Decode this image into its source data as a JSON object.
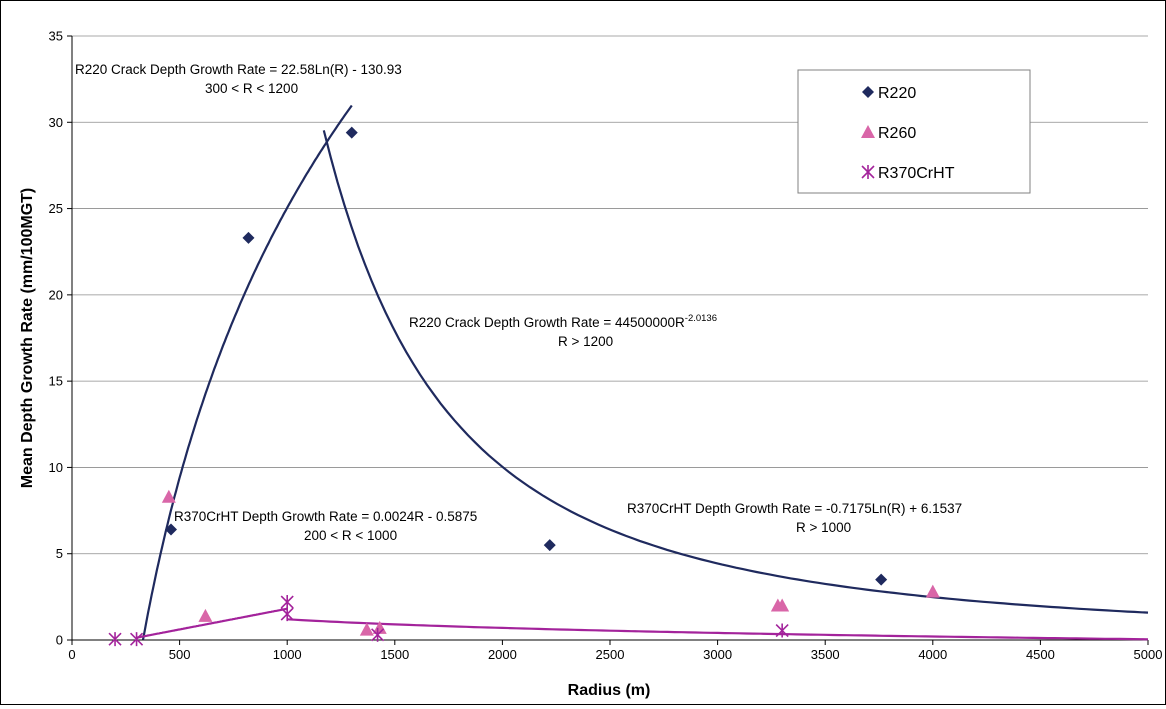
{
  "chart_data": {
    "type": "scatter",
    "xlabel": "Radius (m)",
    "ylabel": "Mean Depth Growth Rate (mm/100MGT)",
    "xlim": [
      0,
      5000
    ],
    "ylim": [
      0,
      35
    ],
    "x_ticks": [
      "0",
      "500",
      "1000",
      "1500",
      "2000",
      "2500",
      "3000",
      "3500",
      "4000",
      "4500",
      "5000"
    ],
    "y_ticks": [
      "0",
      "5",
      "10",
      "15",
      "20",
      "25",
      "30",
      "35"
    ],
    "grid": "horizontal",
    "legend_position": "top-right",
    "series": [
      {
        "name": "R220",
        "marker": "diamond",
        "color": "#1F2A5E",
        "points": [
          [
            460,
            6.4
          ],
          [
            820,
            23.3
          ],
          [
            1300,
            29.4
          ],
          [
            2220,
            5.5
          ],
          [
            3760,
            3.5
          ]
        ]
      },
      {
        "name": "R260",
        "marker": "triangle",
        "color": "#D966A8",
        "points": [
          [
            450,
            8.3
          ],
          [
            620,
            1.4
          ],
          [
            1370,
            0.6
          ],
          [
            1430,
            0.7
          ],
          [
            3280,
            2.0
          ],
          [
            3300,
            2.0
          ],
          [
            4000,
            2.8
          ]
        ]
      },
      {
        "name": "R370CrHT",
        "marker": "asterisk",
        "color": "#A3239B",
        "points": [
          [
            200,
            0.05
          ],
          [
            300,
            0.05
          ],
          [
            1000,
            2.2
          ],
          [
            1000,
            1.5
          ],
          [
            1420,
            0.3
          ],
          [
            3300,
            0.55
          ]
        ]
      }
    ],
    "trendlines": [
      {
        "series": "R220",
        "formula": "22.58*ln(R) - 130.93",
        "x_from": 330,
        "x_to": 1300,
        "color": "#1F2A5E"
      },
      {
        "series": "R220",
        "formula": "44500000*R^-2.0136",
        "x_from": 1170,
        "x_to": 5000,
        "color": "#1F2A5E"
      },
      {
        "series": "R370CrHT",
        "formula": "0.0024*R - 0.5875",
        "x_from": 300,
        "x_to": 1000,
        "color": "#A3239B"
      },
      {
        "series": "R370CrHT",
        "formula": "-0.7175*ln(R) + 6.1537",
        "x_from": 1000,
        "x_to": 5000,
        "color": "#A3239B"
      }
    ],
    "annotations": {
      "r220_log_eq": "R220 Crack Depth Growth Rate = 22.58Ln(R) - 130.93",
      "r220_log_range": "300 < R < 1200",
      "r220_pow_eq_main": "R220 Crack Depth Growth Rate = 44500000R",
      "r220_pow_eq_exp": "-2.0136",
      "r220_pow_range": "R > 1200",
      "r370_lin_eq": "R370CrHT Depth Growth Rate = 0.0024R - 0.5875",
      "r370_lin_range": "200 < R < 1000",
      "r370_log_eq": "R370CrHT Depth Growth Rate = -0.7175Ln(R) + 6.1537",
      "r370_log_range": "R > 1000"
    }
  }
}
